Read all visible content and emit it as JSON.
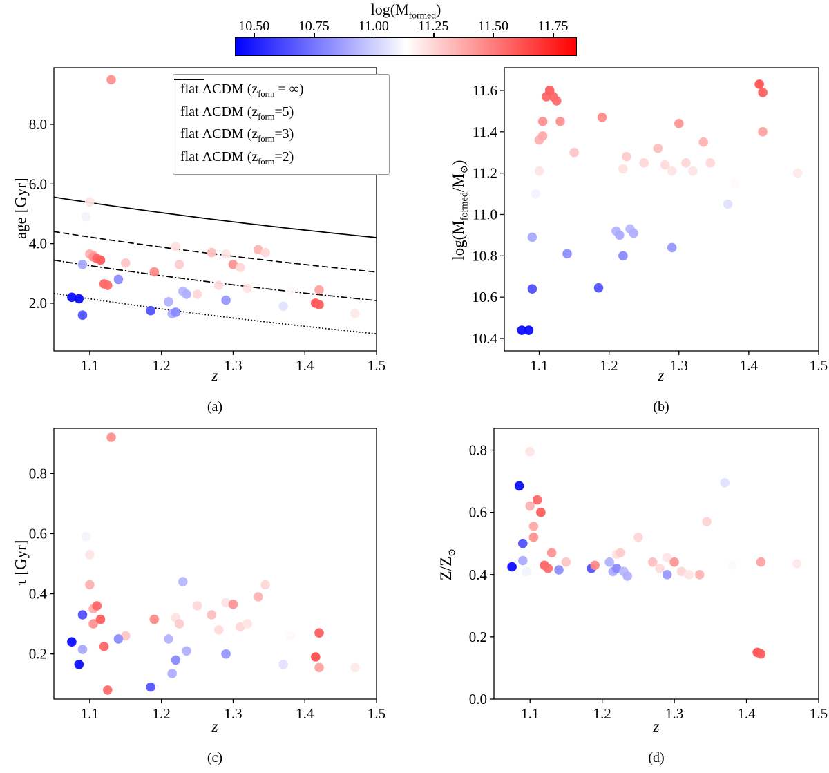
{
  "colorbar": {
    "title_segments": [
      {
        "t": "log(M"
      },
      {
        "s": "formed"
      },
      {
        "t": ")"
      }
    ],
    "vmin": 10.42,
    "vmax": 11.85,
    "color_low": "#0000ff",
    "color_mid": "#ffffff",
    "color_high": "#ff0000",
    "ticks": [
      {
        "v": 10.5,
        "label": "10.50"
      },
      {
        "v": 10.75,
        "label": "10.75"
      },
      {
        "v": 11.0,
        "label": "11.00"
      },
      {
        "v": 11.25,
        "label": "11.25"
      },
      {
        "v": 11.5,
        "label": "11.50"
      },
      {
        "v": 11.75,
        "label": "11.75"
      }
    ]
  },
  "chart_data": {
    "type": "scatter",
    "colormap": "bwr",
    "color_by": "log_mformed",
    "color_range": [
      10.42,
      11.85
    ],
    "x_field": "z",
    "panels": [
      {
        "id": "a",
        "caption": "(a)",
        "xlabel": "z",
        "ylabel_segments": [
          {
            "t": "age [Gyr]"
          }
        ],
        "y_field": "age_gyr",
        "xlim": [
          1.05,
          1.5
        ],
        "ylim": [
          0.4,
          9.9
        ],
        "xticks": [
          1.1,
          1.2,
          1.3,
          1.4,
          1.5
        ],
        "xtick_labels": [
          "1.1",
          "1.2",
          "1.3",
          "1.4",
          "1.5"
        ],
        "yticks": [
          2.0,
          4.0,
          6.0,
          8.0
        ],
        "ytick_labels": [
          "2.0",
          "4.0",
          "6.0",
          "8.0"
        ],
        "curves": {
          "cosmology": {
            "H0": 70,
            "Om": 0.3,
            "OL": 0.7
          },
          "entries": [
            {
              "z_form": null,
              "style": "solid",
              "label_segments": [
                {
                  "t": "flat ΛCDM (z"
                },
                {
                  "s": "form"
                },
                {
                  "t": " = ∞)"
                }
              ]
            },
            {
              "z_form": 5,
              "style": "dashed",
              "label_segments": [
                {
                  "t": "flat ΛCDM (z"
                },
                {
                  "s": "form"
                },
                {
                  "t": "=5)"
                }
              ]
            },
            {
              "z_form": 3,
              "style": "dashdot",
              "label_segments": [
                {
                  "t": "flat ΛCDM (z"
                },
                {
                  "s": "form"
                },
                {
                  "t": "=3)"
                }
              ]
            },
            {
              "z_form": 2,
              "style": "dotted",
              "label_segments": [
                {
                  "t": "flat ΛCDM (z"
                },
                {
                  "s": "form"
                },
                {
                  "t": "=2)"
                }
              ]
            }
          ]
        }
      },
      {
        "id": "b",
        "caption": "(b)",
        "xlabel": "z",
        "ylabel_segments": [
          {
            "t": "log(M"
          },
          {
            "s": "formed"
          },
          {
            "t": "/M"
          },
          {
            "s": "⊙"
          },
          {
            "t": ")"
          }
        ],
        "y_field": "log_mformed",
        "xlim": [
          1.05,
          1.5
        ],
        "ylim": [
          10.34,
          11.71
        ],
        "xticks": [
          1.1,
          1.2,
          1.3,
          1.4,
          1.5
        ],
        "xtick_labels": [
          "1.1",
          "1.2",
          "1.3",
          "1.4",
          "1.5"
        ],
        "yticks": [
          10.4,
          10.6,
          10.8,
          11.0,
          11.2,
          11.4,
          11.6
        ],
        "ytick_labels": [
          "10.4",
          "10.6",
          "10.8",
          "11.0",
          "11.2",
          "11.4",
          "11.6"
        ]
      },
      {
        "id": "c",
        "caption": "(c)",
        "xlabel": "z",
        "ylabel_segments": [
          {
            "t": "τ [Gyr]"
          }
        ],
        "y_field": "tau_gyr",
        "xlim": [
          1.05,
          1.5
        ],
        "ylim": [
          0.05,
          0.95
        ],
        "xticks": [
          1.1,
          1.2,
          1.3,
          1.4,
          1.5
        ],
        "xtick_labels": [
          "1.1",
          "1.2",
          "1.3",
          "1.4",
          "1.5"
        ],
        "yticks": [
          0.2,
          0.4,
          0.6,
          0.8
        ],
        "ytick_labels": [
          "0.2",
          "0.4",
          "0.6",
          "0.8"
        ]
      },
      {
        "id": "d",
        "caption": "(d)",
        "xlabel": "z",
        "ylabel_segments": [
          {
            "t": "Z/Z"
          },
          {
            "s": "⊙"
          }
        ],
        "y_field": "z_zsun",
        "xlim": [
          1.05,
          1.5
        ],
        "ylim": [
          0.0,
          0.87
        ],
        "xticks": [
          1.1,
          1.2,
          1.3,
          1.4,
          1.5
        ],
        "xtick_labels": [
          "1.1",
          "1.2",
          "1.3",
          "1.4",
          "1.5"
        ],
        "yticks": [
          0.0,
          0.2,
          0.4,
          0.6,
          0.8
        ],
        "ytick_labels": [
          "0.0",
          "0.2",
          "0.4",
          "0.6",
          "0.8"
        ]
      }
    ],
    "galaxies": [
      {
        "z": 1.075,
        "log_mformed": 10.44,
        "age_gyr": 2.2,
        "tau_gyr": 0.24,
        "z_zsun": 0.425
      },
      {
        "z": 1.085,
        "log_mformed": 10.44,
        "age_gyr": 2.15,
        "tau_gyr": 0.165,
        "z_zsun": 0.685
      },
      {
        "z": 1.09,
        "log_mformed": 10.64,
        "age_gyr": 1.6,
        "tau_gyr": 0.33,
        "z_zsun": 0.5
      },
      {
        "z": 1.09,
        "log_mformed": 10.89,
        "age_gyr": 3.3,
        "tau_gyr": 0.215,
        "z_zsun": 0.445
      },
      {
        "z": 1.095,
        "log_mformed": 11.1,
        "age_gyr": 4.9,
        "tau_gyr": 0.59,
        "z_zsun": 0.41
      },
      {
        "z": 1.1,
        "log_mformed": 11.21,
        "age_gyr": 5.4,
        "tau_gyr": 0.53,
        "z_zsun": 0.795
      },
      {
        "z": 1.1,
        "log_mformed": 11.36,
        "age_gyr": 3.65,
        "tau_gyr": 0.43,
        "z_zsun": 0.62
      },
      {
        "z": 1.105,
        "log_mformed": 11.38,
        "age_gyr": 3.6,
        "tau_gyr": 0.35,
        "z_zsun": 0.555
      },
      {
        "z": 1.105,
        "log_mformed": 11.45,
        "age_gyr": 3.55,
        "tau_gyr": 0.3,
        "z_zsun": 0.52
      },
      {
        "z": 1.11,
        "log_mformed": 11.57,
        "age_gyr": 3.5,
        "tau_gyr": 0.36,
        "z_zsun": 0.64
      },
      {
        "z": 1.115,
        "log_mformed": 11.6,
        "age_gyr": 3.45,
        "tau_gyr": 0.315,
        "z_zsun": 0.6
      },
      {
        "z": 1.12,
        "log_mformed": 11.57,
        "age_gyr": 2.65,
        "tau_gyr": 0.225,
        "z_zsun": 0.43
      },
      {
        "z": 1.125,
        "log_mformed": 11.55,
        "age_gyr": 2.6,
        "tau_gyr": 0.08,
        "z_zsun": 0.42
      },
      {
        "z": 1.13,
        "log_mformed": 11.45,
        "age_gyr": 9.5,
        "tau_gyr": 0.92,
        "z_zsun": 0.47
      },
      {
        "z": 1.15,
        "log_mformed": 11.3,
        "age_gyr": 3.35,
        "tau_gyr": 0.26,
        "z_zsun": 0.44
      },
      {
        "z": 1.14,
        "log_mformed": 10.81,
        "age_gyr": 2.8,
        "tau_gyr": 0.25,
        "z_zsun": 0.415
      },
      {
        "z": 1.185,
        "log_mformed": 10.645,
        "age_gyr": 1.75,
        "tau_gyr": 0.09,
        "z_zsun": 0.42
      },
      {
        "z": 1.19,
        "log_mformed": 11.47,
        "age_gyr": 3.05,
        "tau_gyr": 0.315,
        "z_zsun": 0.43
      },
      {
        "z": 1.21,
        "log_mformed": 10.92,
        "age_gyr": 2.05,
        "tau_gyr": 0.25,
        "z_zsun": 0.44
      },
      {
        "z": 1.215,
        "log_mformed": 10.9,
        "age_gyr": 1.65,
        "tau_gyr": 0.135,
        "z_zsun": 0.41
      },
      {
        "z": 1.22,
        "log_mformed": 10.8,
        "age_gyr": 1.7,
        "tau_gyr": 0.18,
        "z_zsun": 0.42
      },
      {
        "z": 1.22,
        "log_mformed": 11.22,
        "age_gyr": 3.9,
        "tau_gyr": 0.32,
        "z_zsun": 0.465
      },
      {
        "z": 1.225,
        "log_mformed": 11.28,
        "age_gyr": 3.3,
        "tau_gyr": 0.3,
        "z_zsun": 0.47
      },
      {
        "z": 1.23,
        "log_mformed": 10.93,
        "age_gyr": 2.4,
        "tau_gyr": 0.44,
        "z_zsun": 0.41
      },
      {
        "z": 1.235,
        "log_mformed": 10.91,
        "age_gyr": 2.3,
        "tau_gyr": 0.21,
        "z_zsun": 0.395
      },
      {
        "z": 1.25,
        "log_mformed": 11.25,
        "age_gyr": 2.3,
        "tau_gyr": 0.36,
        "z_zsun": 0.52
      },
      {
        "z": 1.27,
        "log_mformed": 11.32,
        "age_gyr": 3.7,
        "tau_gyr": 0.33,
        "z_zsun": 0.44
      },
      {
        "z": 1.28,
        "log_mformed": 11.24,
        "age_gyr": 2.6,
        "tau_gyr": 0.28,
        "z_zsun": 0.42
      },
      {
        "z": 1.29,
        "log_mformed": 10.84,
        "age_gyr": 2.1,
        "tau_gyr": 0.2,
        "z_zsun": 0.4
      },
      {
        "z": 1.29,
        "log_mformed": 11.21,
        "age_gyr": 3.65,
        "tau_gyr": 0.37,
        "z_zsun": 0.455
      },
      {
        "z": 1.3,
        "log_mformed": 11.44,
        "age_gyr": 3.3,
        "tau_gyr": 0.365,
        "z_zsun": 0.44
      },
      {
        "z": 1.31,
        "log_mformed": 11.25,
        "age_gyr": 3.2,
        "tau_gyr": 0.29,
        "z_zsun": 0.41
      },
      {
        "z": 1.32,
        "log_mformed": 11.21,
        "age_gyr": 2.5,
        "tau_gyr": 0.3,
        "z_zsun": 0.4
      },
      {
        "z": 1.335,
        "log_mformed": 11.35,
        "age_gyr": 3.8,
        "tau_gyr": 0.39,
        "z_zsun": 0.4
      },
      {
        "z": 1.345,
        "log_mformed": 11.25,
        "age_gyr": 3.7,
        "tau_gyr": 0.43,
        "z_zsun": 0.57
      },
      {
        "z": 1.37,
        "log_mformed": 11.05,
        "age_gyr": 1.9,
        "tau_gyr": 0.165,
        "z_zsun": 0.695
      },
      {
        "z": 1.38,
        "log_mformed": 11.15,
        "age_gyr": 2.4,
        "tau_gyr": 0.26,
        "z_zsun": 0.43
      },
      {
        "z": 1.415,
        "log_mformed": 11.63,
        "age_gyr": 2.0,
        "tau_gyr": 0.19,
        "z_zsun": 0.15
      },
      {
        "z": 1.42,
        "log_mformed": 11.59,
        "age_gyr": 1.95,
        "tau_gyr": 0.27,
        "z_zsun": 0.145
      },
      {
        "z": 1.42,
        "log_mformed": 11.4,
        "age_gyr": 2.45,
        "tau_gyr": 0.155,
        "z_zsun": 0.44
      },
      {
        "z": 1.47,
        "log_mformed": 11.2,
        "age_gyr": 1.65,
        "tau_gyr": 0.155,
        "z_zsun": 0.435
      }
    ]
  }
}
